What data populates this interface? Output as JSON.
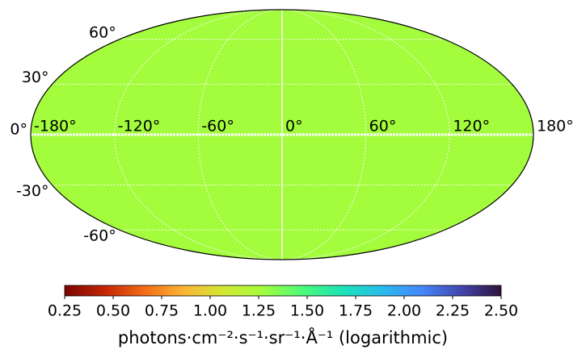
{
  "chart_data": {
    "type": "mollweide",
    "map_value": 1.28,
    "map_color": "#a3fc3c",
    "lat_ticks": [
      {
        "value": 60,
        "label": "60°"
      },
      {
        "value": 30,
        "label": "30°"
      },
      {
        "value": 0,
        "label": "0°"
      },
      {
        "value": -30,
        "label": "-30°"
      },
      {
        "value": -60,
        "label": "-60°"
      }
    ],
    "lon_ticks": [
      {
        "value": -180,
        "label": "-180°"
      },
      {
        "value": -120,
        "label": "-120°"
      },
      {
        "value": -60,
        "label": "-60°"
      },
      {
        "value": 0,
        "label": "0°"
      },
      {
        "value": 60,
        "label": "60°"
      },
      {
        "value": 120,
        "label": "120°"
      },
      {
        "value": 180,
        "label": "180°"
      }
    ],
    "colorbar": {
      "clim": [
        0.25,
        2.5
      ],
      "ticks": [
        0.25,
        {
          "value": 0.5,
          "label": "0.50"
        },
        0.75,
        {
          "value": 1.0,
          "label": "1.00"
        },
        1.25,
        {
          "value": 1.5,
          "label": "1.50"
        },
        1.75,
        {
          "value": 2.0,
          "label": "2.00"
        },
        2.25,
        {
          "value": 2.5,
          "label": "2.50"
        }
      ],
      "colormap": [
        "#7a0403",
        "#c42503",
        "#f26b15",
        "#fcb536",
        "#d3e835",
        "#a3fc3c",
        "#4cf97b",
        "#1ae4b6",
        "#29bbec",
        "#4686fb",
        "#4145ab",
        "#30123b"
      ],
      "label": "photons·cm⁻²·s⁻¹·sr⁻¹·Å⁻¹ (logarithmic)"
    }
  }
}
